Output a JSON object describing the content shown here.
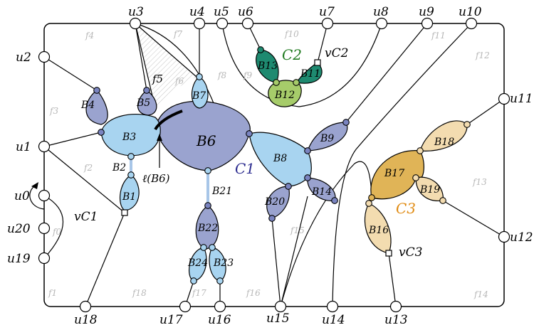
{
  "vertex_labels": {
    "u0": "u0",
    "u1": "u1",
    "u2": "u2",
    "u3": "u3",
    "u4": "u4",
    "u5": "u5",
    "u6": "u6",
    "u7": "u7",
    "u8": "u8",
    "u9": "u9",
    "u10": "u10",
    "u11": "u11",
    "u12": "u12",
    "u13": "u13",
    "u14": "u14",
    "u15": "u15",
    "u16": "u16",
    "u17": "u17",
    "u18": "u18",
    "u19": "u19",
    "u20": "u20"
  },
  "face_labels": {
    "f0": "f0",
    "f1": "f1",
    "f2": "f2",
    "f3": "f3",
    "f4": "f4",
    "f5": "f5",
    "f6": "f6",
    "f7": "f7",
    "f8": "f8",
    "f9": "f9",
    "f10": "f10",
    "f11": "f11",
    "f12": "f12",
    "f13": "f13",
    "f14": "f14",
    "f15": "f15",
    "f16": "f16",
    "f17": "f17",
    "f18": "f18"
  },
  "block_labels": {
    "B1": "B1",
    "B2": "B2",
    "B3": "B3",
    "B4": "B4",
    "B5": "B5",
    "B6": "B6",
    "B7": "B7",
    "B8": "B8",
    "B9": "B9",
    "B11": "B11",
    "B12": "B12",
    "B13": "B13",
    "B14": "B14",
    "B16": "B16",
    "B17": "B17",
    "B18": "B18",
    "B19": "B19",
    "B20": "B20",
    "B21": "B21",
    "B22": "B22",
    "B23": "B23",
    "B24": "B24"
  },
  "component_labels": {
    "C1": "C1",
    "C2": "C2",
    "C3": "C3"
  },
  "cut_vertex_labels": {
    "vC1": "vC1",
    "vC2": "vC2",
    "vC3": "vC3"
  },
  "annotations": {
    "lB6": "ℓ(B6)",
    "f5": "f5"
  },
  "colors": {
    "block_dark_blue": "#9aa3cf",
    "block_light_blue": "#a8d4f0",
    "block_green_dark": "#1e8a70",
    "block_green_light": "#a6cc6a",
    "block_orange_dark": "#e0b457",
    "block_orange_light": "#f3dcb0",
    "c1_text": "#2b2b8f",
    "c2_text": "#1f7a1f",
    "c3_text": "#e08a10",
    "face_text": "#b8b8b8"
  }
}
